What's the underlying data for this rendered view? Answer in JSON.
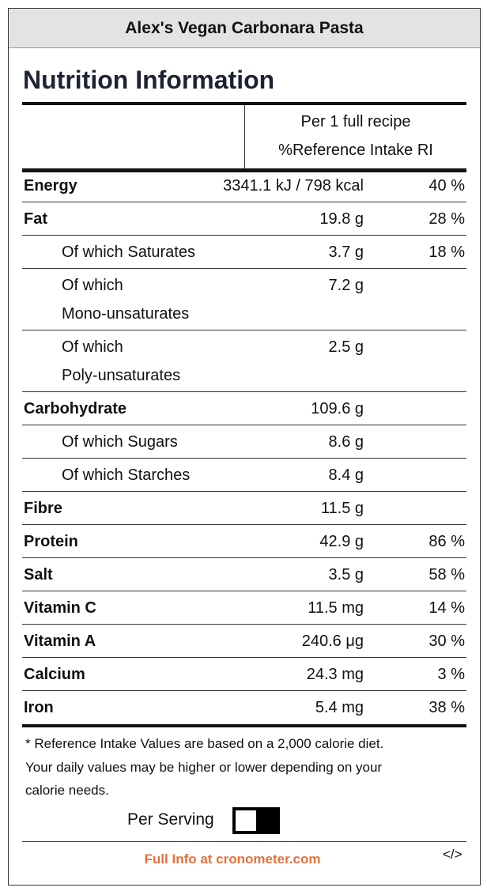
{
  "header": {
    "title": "Alex's Vegan Carbonara Pasta"
  },
  "heading": "Nutrition Information",
  "columns": [
    "Per 1 full recipe",
    "%Reference Intake RI"
  ],
  "rows": [
    {
      "label": [
        "Energy"
      ],
      "amount": "3341.1 kJ / 798 kcal",
      "percent": "40 %"
    },
    {
      "label": [
        "Fat"
      ],
      "amount": "19.8 g",
      "percent": "28 %"
    },
    {
      "label": [
        "Of which Saturates"
      ],
      "amount": "3.7 g",
      "percent": "18 %"
    },
    {
      "label": [
        "Of which",
        "Mono-unsaturates"
      ],
      "amount": "7.2 g"
    },
    {
      "label": [
        "Of which",
        "Poly-unsaturates"
      ],
      "amount": "2.5 g"
    },
    {
      "label": [
        "Carbohydrate"
      ],
      "amount": "109.6 g"
    },
    {
      "label": [
        "Of which Sugars"
      ],
      "amount": "8.6 g"
    },
    {
      "label": [
        "Of which Starches"
      ],
      "amount": "8.4 g"
    },
    {
      "label": [
        "Fibre"
      ],
      "amount": "11.5 g"
    },
    {
      "label": [
        "Protein"
      ],
      "amount": "42.9 g",
      "percent": "86 %"
    },
    {
      "label": [
        "Salt"
      ],
      "amount": "3.5 g",
      "percent": "58 %"
    },
    {
      "label": [
        "Vitamin C"
      ],
      "amount": "11.5 mg",
      "percent": "14 %"
    },
    {
      "label": [
        "Vitamin A"
      ],
      "amount": "240.6 μg",
      "percent": "30 %"
    },
    {
      "label": [
        "Calcium"
      ],
      "amount": "24.3 mg",
      "percent": "3 %"
    },
    {
      "label": [
        "Iron"
      ],
      "amount": "5.4 mg",
      "percent": "38 %"
    }
  ],
  "footnote": [
    "* Reference Intake Values are based on a 2,000 calorie diet.",
    "Your daily values may be higher or lower depending on your",
    "calorie needs."
  ],
  "toggle_label": "Per Serving",
  "footer": {
    "link": "Full Info at cronometer.com",
    "embed": "</>"
  }
}
